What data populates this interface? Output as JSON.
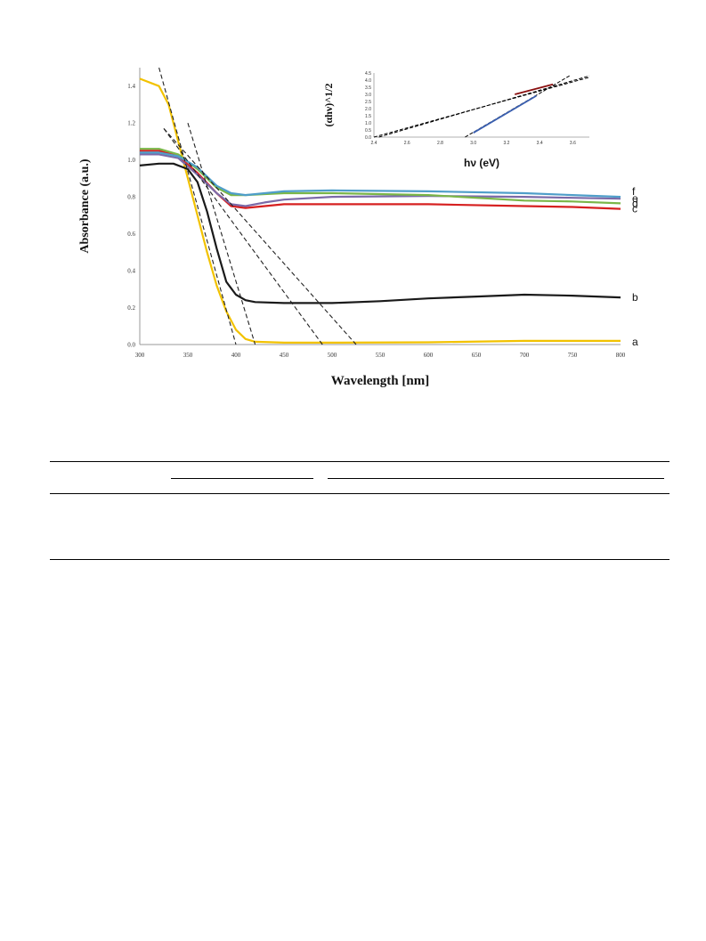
{
  "chart_data": [
    {
      "type": "line",
      "xlabel": "Wavelength [nm]",
      "ylabel": "Absorbance (a.u.)",
      "xlim": [
        300,
        800
      ],
      "ylim": [
        0,
        1.5
      ],
      "x_ticks": [
        "300",
        "350",
        "400",
        "450",
        "500",
        "550",
        "600",
        "650",
        "700",
        "750",
        "800"
      ],
      "y_ticks": [
        "0.0",
        "0.2",
        "0.4",
        "0.6",
        "0.8",
        "1.0",
        "1.2",
        "1.4"
      ],
      "grid": false,
      "series": [
        {
          "label": "a",
          "color": "#f2c200",
          "points": [
            [
              300,
              1.44
            ],
            [
              320,
              1.4
            ],
            [
              330,
              1.3
            ],
            [
              340,
              1.1
            ],
            [
              350,
              0.9
            ],
            [
              360,
              0.7
            ],
            [
              370,
              0.5
            ],
            [
              380,
              0.32
            ],
            [
              390,
              0.18
            ],
            [
              400,
              0.08
            ],
            [
              410,
              0.03
            ],
            [
              420,
              0.015
            ],
            [
              450,
              0.01
            ],
            [
              500,
              0.01
            ],
            [
              600,
              0.012
            ],
            [
              700,
              0.02
            ],
            [
              750,
              0.02
            ],
            [
              800,
              0.02
            ]
          ]
        },
        {
          "label": "b",
          "color": "#1a1a1a",
          "points": [
            [
              300,
              0.97
            ],
            [
              320,
              0.98
            ],
            [
              335,
              0.98
            ],
            [
              350,
              0.95
            ],
            [
              360,
              0.88
            ],
            [
              370,
              0.72
            ],
            [
              380,
              0.52
            ],
            [
              390,
              0.34
            ],
            [
              400,
              0.27
            ],
            [
              410,
              0.24
            ],
            [
              420,
              0.23
            ],
            [
              450,
              0.225
            ],
            [
              500,
              0.225
            ],
            [
              550,
              0.235
            ],
            [
              600,
              0.25
            ],
            [
              650,
              0.26
            ],
            [
              700,
              0.27
            ],
            [
              750,
              0.265
            ],
            [
              800,
              0.255
            ]
          ]
        },
        {
          "label": "c",
          "color": "#d62020",
          "points": [
            [
              300,
              1.05
            ],
            [
              320,
              1.05
            ],
            [
              340,
              1.02
            ],
            [
              360,
              0.93
            ],
            [
              380,
              0.82
            ],
            [
              395,
              0.75
            ],
            [
              410,
              0.74
            ],
            [
              430,
              0.75
            ],
            [
              450,
              0.76
            ],
            [
              500,
              0.76
            ],
            [
              600,
              0.76
            ],
            [
              700,
              0.75
            ],
            [
              750,
              0.745
            ],
            [
              800,
              0.735
            ]
          ]
        },
        {
          "label": "d",
          "color": "#7b6aa8",
          "points": [
            [
              300,
              1.03
            ],
            [
              320,
              1.03
            ],
            [
              340,
              1.01
            ],
            [
              360,
              0.92
            ],
            [
              380,
              0.82
            ],
            [
              395,
              0.76
            ],
            [
              410,
              0.75
            ],
            [
              430,
              0.77
            ],
            [
              450,
              0.785
            ],
            [
              500,
              0.8
            ],
            [
              600,
              0.805
            ],
            [
              700,
              0.8
            ],
            [
              750,
              0.795
            ],
            [
              800,
              0.79
            ]
          ]
        },
        {
          "label": "e",
          "color": "#7ab648",
          "points": [
            [
              300,
              1.06
            ],
            [
              320,
              1.06
            ],
            [
              340,
              1.03
            ],
            [
              360,
              0.95
            ],
            [
              380,
              0.85
            ],
            [
              395,
              0.81
            ],
            [
              410,
              0.81
            ],
            [
              430,
              0.815
            ],
            [
              450,
              0.82
            ],
            [
              500,
              0.82
            ],
            [
              600,
              0.81
            ],
            [
              700,
              0.78
            ],
            [
              750,
              0.775
            ],
            [
              800,
              0.765
            ]
          ]
        },
        {
          "label": "f",
          "color": "#4f9ec9",
          "points": [
            [
              300,
              1.04
            ],
            [
              320,
              1.04
            ],
            [
              340,
              1.02
            ],
            [
              360,
              0.96
            ],
            [
              380,
              0.86
            ],
            [
              395,
              0.82
            ],
            [
              410,
              0.81
            ],
            [
              430,
              0.82
            ],
            [
              450,
              0.83
            ],
            [
              500,
              0.835
            ],
            [
              600,
              0.83
            ],
            [
              700,
              0.82
            ],
            [
              750,
              0.81
            ],
            [
              800,
              0.8
            ]
          ]
        }
      ],
      "tangent_lines": [
        [
          [
            320,
            1.5
          ],
          [
            400,
            0.0
          ]
        ],
        [
          [
            350,
            1.2
          ],
          [
            420,
            0.0
          ]
        ],
        [
          [
            325,
            1.17
          ],
          [
            490,
            0.0
          ]
        ],
        [
          [
            325,
            1.17
          ],
          [
            525,
            0.0
          ]
        ]
      ]
    },
    {
      "type": "line",
      "xlabel": "hν (eV)",
      "ylabel": "(αhν)^1/2",
      "xlim": [
        2.4,
        3.7
      ],
      "ylim": [
        0,
        4.5
      ],
      "x_ticks": [
        "2.4",
        "2.6",
        "2.8",
        "3.0",
        "3.2",
        "3.4",
        "3.6"
      ],
      "y_ticks": [
        "0.0",
        "0.5",
        "1.0",
        "1.5",
        "2.0",
        "2.5",
        "3.0",
        "3.5",
        "4.0",
        "4.5"
      ],
      "grid": false,
      "segments": [
        {
          "color": "#000000",
          "dashed": true,
          "points": [
            [
              2.4,
              0.0
            ],
            [
              3.7,
              4.2
            ]
          ]
        },
        {
          "color": "#000000",
          "dashed": true,
          "points": [
            [
              2.43,
              0.0
            ],
            [
              3.7,
              4.3
            ]
          ]
        },
        {
          "color": "#000000",
          "dashed": true,
          "points": [
            [
              2.95,
              0.0
            ],
            [
              3.58,
              4.3
            ]
          ]
        },
        {
          "color": "#3a5fb0",
          "dashed": false,
          "points": [
            [
              3.0,
              0.3
            ],
            [
              3.38,
              2.9
            ]
          ]
        },
        {
          "color": "#8a1010",
          "dashed": false,
          "points": [
            [
              3.25,
              3.0
            ],
            [
              3.48,
              3.7
            ]
          ]
        }
      ]
    }
  ]
}
